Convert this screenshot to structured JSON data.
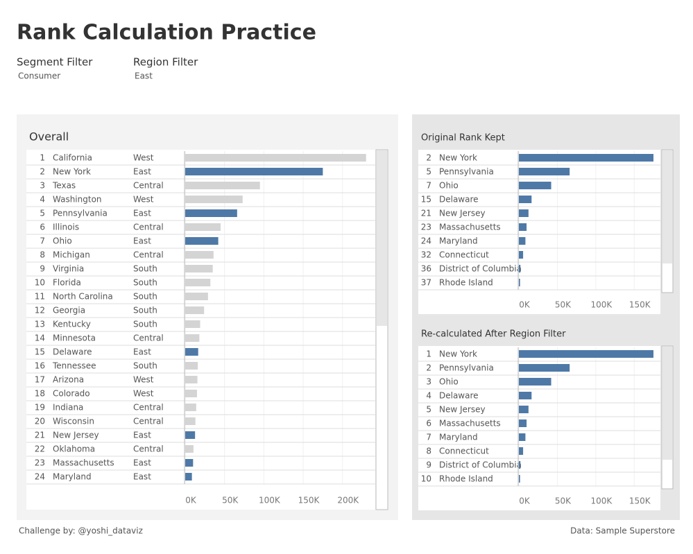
{
  "title": "Rank Calculation Practice",
  "filters": [
    {
      "label": "Segment Filter",
      "value": "Consumer"
    },
    {
      "label": "Region Filter",
      "value": "East"
    }
  ],
  "footer": {
    "left": "Challenge by: @yoshi_dataviz",
    "right": "Data: Sample Superstore"
  },
  "highlight_color": "#4e79a7",
  "other_color": "#d4d4d4",
  "chart_data": [
    {
      "type": "bar",
      "title": "Overall",
      "ranks": [
        1,
        2,
        3,
        4,
        5,
        6,
        7,
        8,
        9,
        10,
        11,
        12,
        13,
        14,
        15,
        16,
        17,
        18,
        19,
        20,
        21,
        22,
        23,
        24
      ],
      "categories": [
        "California",
        "New York",
        "Texas",
        "Washington",
        "Pennsylvania",
        "Illinois",
        "Ohio",
        "Michigan",
        "Virginia",
        "Florida",
        "North Carolina",
        "Georgia",
        "Kentucky",
        "Minnesota",
        "Delaware",
        "Tennessee",
        "Arizona",
        "Colorado",
        "Indiana",
        "Wisconsin",
        "New Jersey",
        "Oklahoma",
        "Massachusetts",
        "Maryland"
      ],
      "regions": [
        "West",
        "East",
        "Central",
        "West",
        "East",
        "Central",
        "East",
        "Central",
        "South",
        "South",
        "South",
        "South",
        "South",
        "Central",
        "East",
        "South",
        "West",
        "West",
        "Central",
        "Central",
        "East",
        "Central",
        "East",
        "East"
      ],
      "values": [
        230,
        175,
        95,
        73,
        66,
        45,
        42,
        36,
        35,
        32,
        29,
        24,
        19,
        18,
        16.5,
        16,
        15.5,
        15,
        14,
        13,
        12.5,
        10.5,
        10,
        8.5
      ],
      "xlim": [
        0,
        232
      ],
      "xticks": [
        {
          "value": 0,
          "label": "0K"
        },
        {
          "value": 50,
          "label": "50K"
        },
        {
          "value": 100,
          "label": "100K"
        },
        {
          "value": 150,
          "label": "150K"
        },
        {
          "value": 200,
          "label": "200K"
        }
      ]
    },
    {
      "type": "bar",
      "title": "Original Rank Kept",
      "ranks": [
        2,
        5,
        7,
        15,
        21,
        23,
        24,
        32,
        36,
        37
      ],
      "categories": [
        "New York",
        "Pennsylvania",
        "Ohio",
        "Delaware",
        "New Jersey",
        "Massachusetts",
        "Maryland",
        "Connecticut",
        "District of Columbia",
        "Rhode Island"
      ],
      "values": [
        175,
        66,
        42,
        16.5,
        12.5,
        10,
        8.5,
        5.5,
        2,
        1.5
      ],
      "xlim": [
        0,
        175
      ],
      "xticks": [
        {
          "value": 0,
          "label": "0K"
        },
        {
          "value": 50,
          "label": "50K"
        },
        {
          "value": 100,
          "label": "100K"
        },
        {
          "value": 150,
          "label": "150K"
        }
      ]
    },
    {
      "type": "bar",
      "title": "Re-calculated After Region Filter",
      "ranks": [
        1,
        2,
        3,
        4,
        5,
        6,
        7,
        8,
        9,
        10
      ],
      "categories": [
        "New York",
        "Pennsylvania",
        "Ohio",
        "Delaware",
        "New Jersey",
        "Massachusetts",
        "Maryland",
        "Connecticut",
        "District of Columbia",
        "Rhode Island"
      ],
      "values": [
        175,
        66,
        42,
        16.5,
        12.5,
        10,
        8.5,
        5.5,
        2,
        1.5
      ],
      "xlim": [
        0,
        175
      ],
      "xticks": [
        {
          "value": 0,
          "label": "0K"
        },
        {
          "value": 50,
          "label": "50K"
        },
        {
          "value": 100,
          "label": "100K"
        },
        {
          "value": 150,
          "label": "150K"
        }
      ]
    }
  ]
}
